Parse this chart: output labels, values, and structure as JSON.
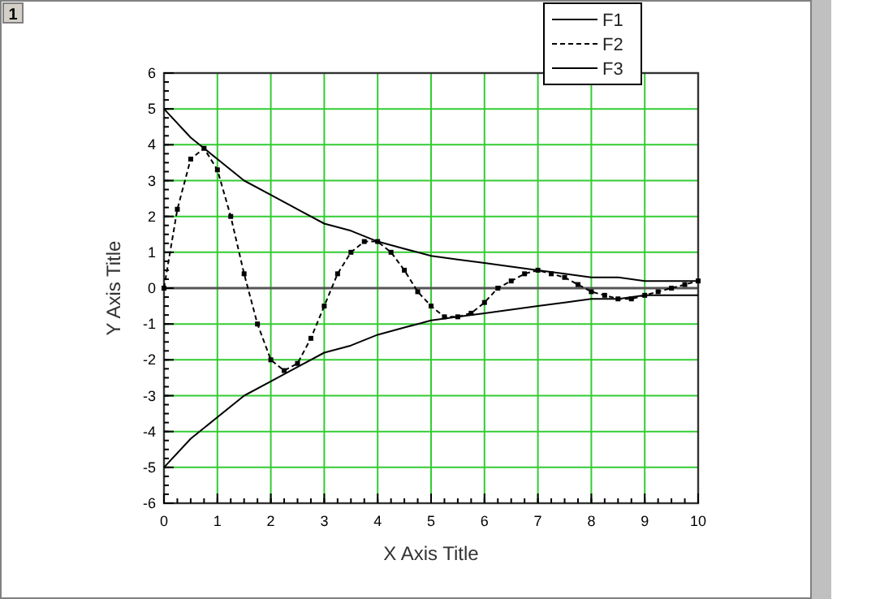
{
  "chart_data": {
    "type": "line",
    "xlabel": "X Axis Title",
    "ylabel": "Y Axis Title",
    "annotations": [
      "1"
    ],
    "xlim": [
      0,
      10
    ],
    "ylim": [
      -6,
      6
    ],
    "xticks": [
      0,
      1,
      2,
      3,
      4,
      5,
      6,
      7,
      8,
      9,
      10
    ],
    "yticks": [
      -6,
      -5,
      -4,
      -3,
      -2,
      -1,
      0,
      1,
      2,
      3,
      4,
      5,
      6
    ],
    "grid": true,
    "legend": "top right",
    "ref_lines": [
      {
        "axis": "y",
        "value": 0,
        "color": "#555555"
      }
    ],
    "series": [
      {
        "name": "F1",
        "color": "#000000",
        "line_style": "solid",
        "marker": "none",
        "x": [
          0,
          0.5,
          1,
          1.5,
          2,
          2.5,
          3,
          3.5,
          4,
          4.5,
          5,
          5.5,
          6,
          6.5,
          7,
          7.5,
          8,
          8.5,
          9,
          9.5,
          10
        ],
        "values": [
          5,
          4.2,
          3.6,
          3.0,
          2.6,
          2.2,
          1.8,
          1.6,
          1.3,
          1.1,
          0.9,
          0.8,
          0.7,
          0.6,
          0.5,
          0.4,
          0.3,
          0.3,
          0.2,
          0.2,
          0.2
        ]
      },
      {
        "name": "F2",
        "color": "#000000",
        "line_style": "dashed",
        "marker": "square",
        "x": [
          0,
          0.25,
          0.5,
          0.75,
          1,
          1.25,
          1.5,
          1.75,
          2,
          2.25,
          2.5,
          2.75,
          3,
          3.25,
          3.5,
          3.75,
          4,
          4.25,
          4.5,
          4.75,
          5,
          5.25,
          5.5,
          5.75,
          6,
          6.25,
          6.5,
          6.75,
          7,
          7.25,
          7.5,
          7.75,
          8,
          8.25,
          8.5,
          8.75,
          9,
          9.25,
          9.5,
          9.75,
          10
        ],
        "values": [
          0,
          2.2,
          3.6,
          3.9,
          3.3,
          2.0,
          0.4,
          -1.0,
          -2.0,
          -2.3,
          -2.1,
          -1.4,
          -0.5,
          0.4,
          1.0,
          1.3,
          1.3,
          1.0,
          0.5,
          -0.1,
          -0.5,
          -0.8,
          -0.8,
          -0.7,
          -0.4,
          0,
          0.2,
          0.4,
          0.5,
          0.4,
          0.3,
          0.1,
          -0.1,
          -0.2,
          -0.3,
          -0.3,
          -0.2,
          -0.1,
          0,
          0.1,
          0.2
        ]
      },
      {
        "name": "F3",
        "color": "#000000",
        "line_style": "solid",
        "marker": "none",
        "x": [
          0,
          0.5,
          1,
          1.5,
          2,
          2.5,
          3,
          3.5,
          4,
          4.5,
          5,
          5.5,
          6,
          6.5,
          7,
          7.5,
          8,
          8.5,
          9,
          9.5,
          10
        ],
        "values": [
          -5,
          -4.2,
          -3.6,
          -3.0,
          -2.6,
          -2.2,
          -1.8,
          -1.6,
          -1.3,
          -1.1,
          -0.9,
          -0.8,
          -0.7,
          -0.6,
          -0.5,
          -0.4,
          -0.3,
          -0.3,
          -0.2,
          -0.2,
          -0.2
        ]
      }
    ]
  }
}
